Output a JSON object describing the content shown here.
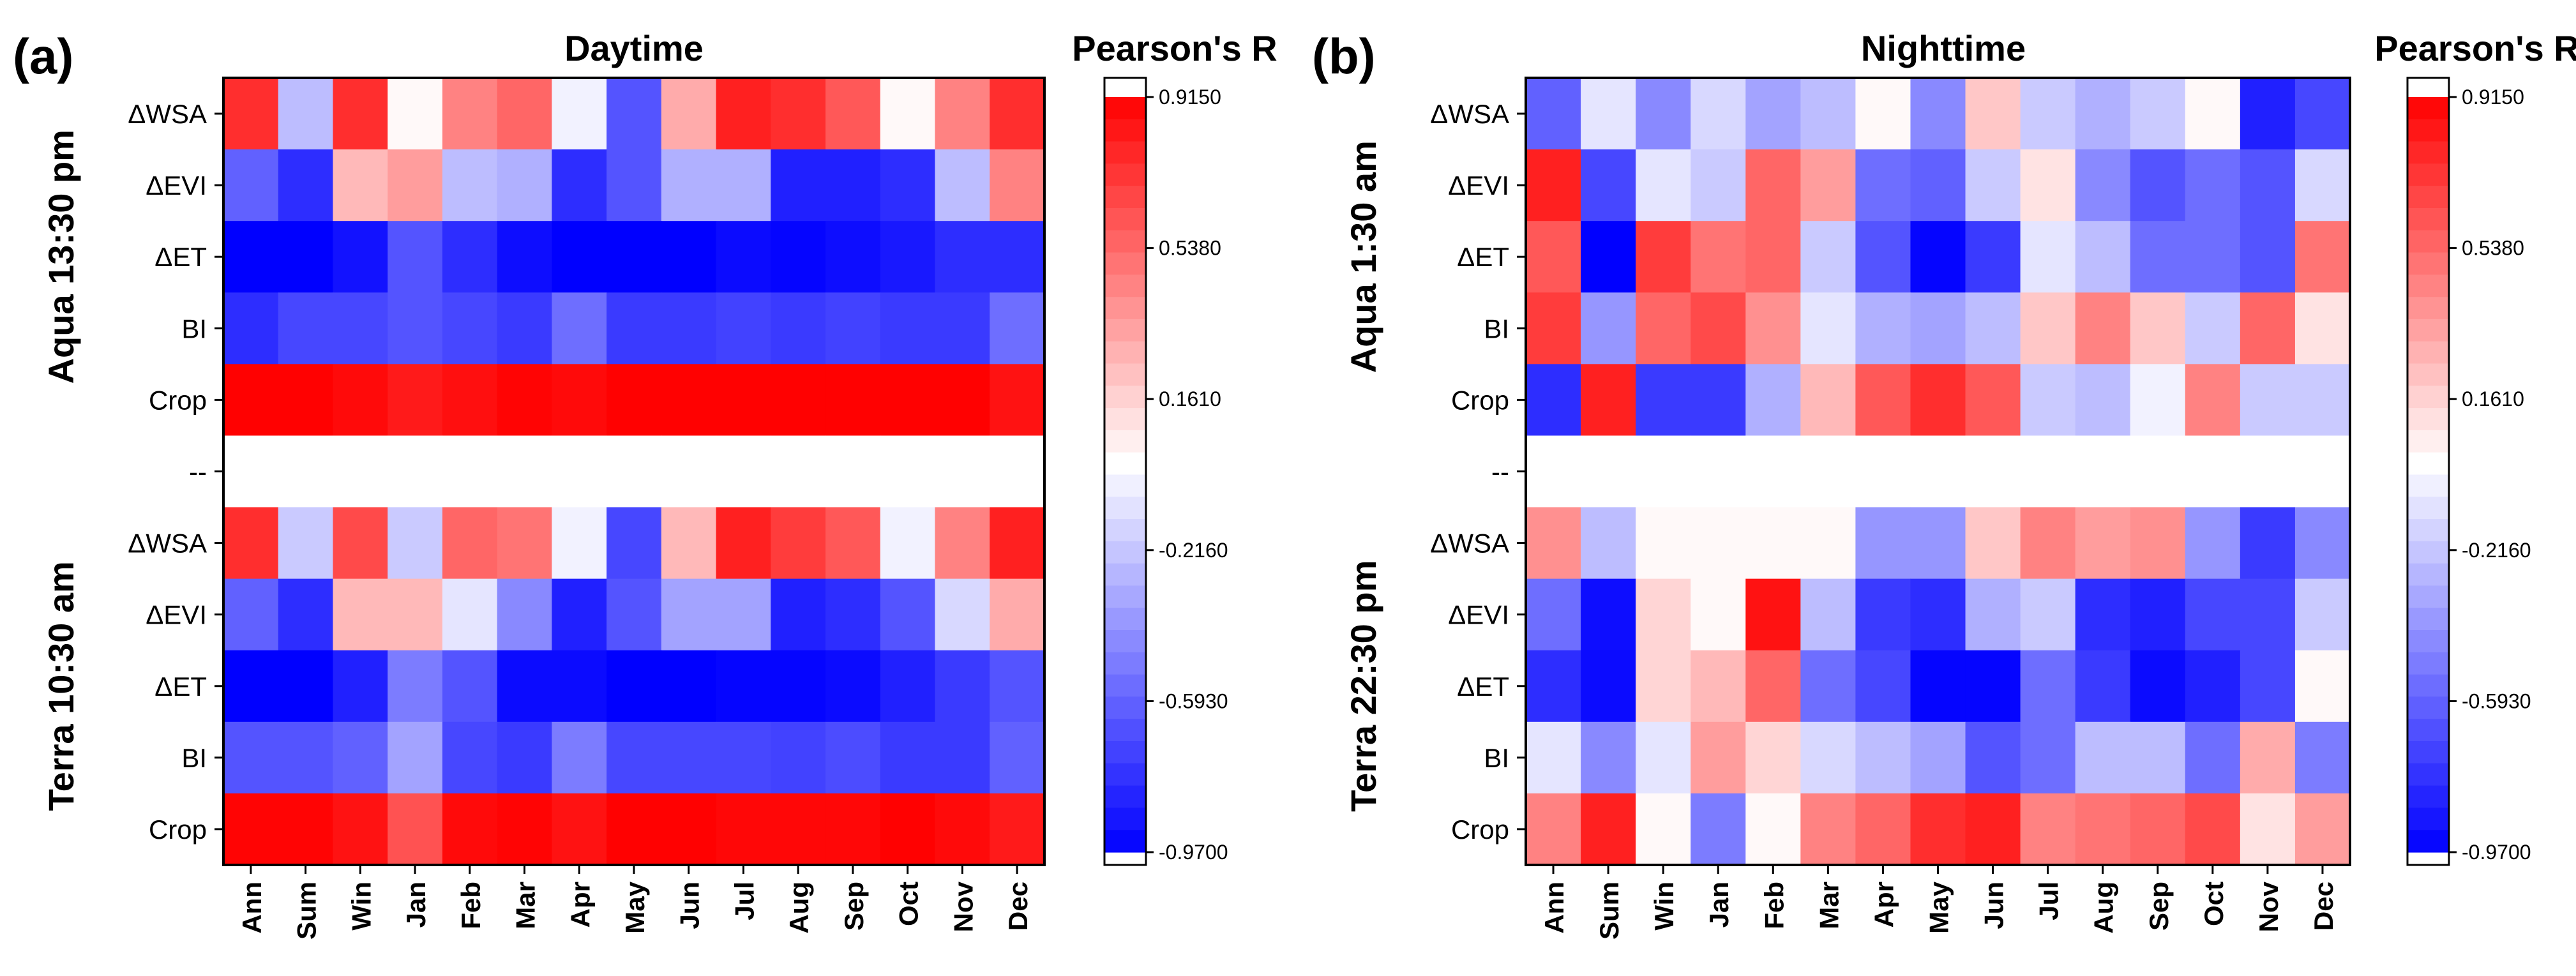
{
  "figure": {
    "colorbar_title": "Pearson's R",
    "colorbar_ticks": [
      {
        "value": 0.915,
        "label": "0.9150"
      },
      {
        "value": 0.538,
        "label": "0.5380"
      },
      {
        "value": 0.161,
        "label": "0.1610"
      },
      {
        "value": -0.216,
        "label": "-0.2160"
      },
      {
        "value": -0.593,
        "label": "-0.5930"
      },
      {
        "value": -0.97,
        "label": "-0.9700"
      }
    ],
    "colorbar_range": [
      -0.97,
      0.915
    ],
    "colors": {
      "negative": "#0000ff",
      "neutral": "#ffffff",
      "positive": "#ff0000"
    }
  },
  "chart_data": [
    {
      "type": "heatmap",
      "panel_label": "(a)",
      "title": "Daytime",
      "group_labels": [
        "Aqua 13:30  pm",
        "Terra 10:30  am"
      ],
      "x": [
        "Ann",
        "Sum",
        "Win",
        "Jan",
        "Feb",
        "Mar",
        "Apr",
        "May",
        "Jun",
        "Jul",
        "Aug",
        "Sep",
        "Oct",
        "Nov",
        "Dec"
      ],
      "y": [
        "ΔWSA",
        "ΔEVI",
        "ΔET",
        "BI",
        "Crop",
        "--",
        "ΔWSA",
        "ΔEVI",
        "ΔET",
        "BI",
        "Crop"
      ],
      "z": [
        [
          0.75,
          -0.25,
          0.75,
          0.02,
          0.45,
          0.55,
          -0.05,
          -0.65,
          0.3,
          0.8,
          0.75,
          0.6,
          0.02,
          0.45,
          0.75
        ],
        [
          -0.6,
          -0.8,
          0.25,
          0.35,
          -0.25,
          -0.3,
          -0.8,
          -0.65,
          -0.3,
          -0.3,
          -0.85,
          -0.85,
          -0.8,
          -0.25,
          0.45
        ],
        [
          -0.97,
          -0.97,
          -0.9,
          -0.65,
          -0.8,
          -0.92,
          -0.97,
          -0.97,
          -0.97,
          -0.93,
          -0.95,
          -0.92,
          -0.88,
          -0.8,
          -0.8
        ],
        [
          -0.8,
          -0.7,
          -0.7,
          -0.65,
          -0.7,
          -0.75,
          -0.55,
          -0.75,
          -0.75,
          -0.72,
          -0.75,
          -0.72,
          -0.75,
          -0.75,
          -0.55
        ],
        [
          0.91,
          0.91,
          0.88,
          0.82,
          0.86,
          0.9,
          0.88,
          0.91,
          0.91,
          0.91,
          0.91,
          0.91,
          0.91,
          0.91,
          0.85
        ],
        [
          null,
          null,
          null,
          null,
          null,
          null,
          null,
          null,
          null,
          null,
          null,
          null,
          null,
          null,
          null
        ],
        [
          0.75,
          -0.2,
          0.65,
          -0.2,
          0.55,
          0.5,
          -0.05,
          -0.7,
          0.25,
          0.8,
          0.7,
          0.6,
          -0.05,
          0.45,
          0.8
        ],
        [
          -0.6,
          -0.8,
          0.25,
          0.25,
          -0.1,
          -0.45,
          -0.85,
          -0.65,
          -0.35,
          -0.35,
          -0.85,
          -0.8,
          -0.65,
          -0.15,
          0.3
        ],
        [
          -0.97,
          -0.97,
          -0.85,
          -0.5,
          -0.65,
          -0.93,
          -0.93,
          -0.97,
          -0.97,
          -0.95,
          -0.95,
          -0.93,
          -0.85,
          -0.75,
          -0.65
        ],
        [
          -0.65,
          -0.65,
          -0.6,
          -0.35,
          -0.7,
          -0.75,
          -0.5,
          -0.7,
          -0.7,
          -0.7,
          -0.72,
          -0.68,
          -0.75,
          -0.75,
          -0.6
        ],
        [
          0.9,
          0.9,
          0.85,
          0.62,
          0.88,
          0.9,
          0.85,
          0.91,
          0.91,
          0.89,
          0.89,
          0.89,
          0.91,
          0.88,
          0.82
        ]
      ]
    },
    {
      "type": "heatmap",
      "panel_label": "(b)",
      "title": "Nighttime",
      "group_labels": [
        "Aqua 1:30  am",
        "Terra 22:30  pm"
      ],
      "x": [
        "Ann",
        "Sum",
        "Win",
        "Jan",
        "Feb",
        "Mar",
        "Apr",
        "May",
        "Jun",
        "Jul",
        "Aug",
        "Sep",
        "Oct",
        "Nov",
        "Dec"
      ],
      "y": [
        "ΔWSA",
        "ΔEVI",
        "ΔET",
        "BI",
        "Crop",
        "--",
        "ΔWSA",
        "ΔEVI",
        "ΔET",
        "BI",
        "Crop"
      ],
      "z": [
        [
          -0.6,
          -0.1,
          -0.45,
          -0.15,
          -0.35,
          -0.25,
          0.02,
          -0.45,
          0.2,
          -0.2,
          -0.3,
          -0.2,
          0.02,
          -0.85,
          -0.7
        ],
        [
          0.8,
          -0.7,
          -0.1,
          -0.2,
          0.55,
          0.35,
          -0.55,
          -0.6,
          -0.2,
          0.1,
          -0.45,
          -0.65,
          -0.55,
          -0.65,
          -0.15
        ],
        [
          0.6,
          -0.97,
          0.7,
          0.5,
          0.55,
          -0.2,
          -0.65,
          -0.95,
          -0.75,
          -0.1,
          -0.25,
          -0.55,
          -0.55,
          -0.65,
          0.5
        ],
        [
          0.7,
          -0.4,
          0.55,
          0.65,
          0.4,
          -0.1,
          -0.3,
          -0.35,
          -0.25,
          0.2,
          0.45,
          0.2,
          -0.2,
          0.55,
          0.1
        ],
        [
          -0.8,
          0.8,
          -0.75,
          -0.75,
          -0.3,
          0.25,
          0.6,
          0.75,
          0.6,
          -0.2,
          -0.25,
          -0.05,
          0.45,
          -0.2,
          -0.2
        ],
        [
          null,
          null,
          null,
          null,
          null,
          null,
          null,
          null,
          null,
          null,
          null,
          null,
          null,
          null,
          null
        ],
        [
          0.4,
          -0.25,
          0.02,
          0.02,
          0.02,
          0.02,
          -0.4,
          -0.4,
          0.2,
          0.45,
          0.35,
          0.4,
          -0.4,
          -0.75,
          -0.45
        ],
        [
          -0.55,
          -0.92,
          0.15,
          0.02,
          0.85,
          -0.25,
          -0.75,
          -0.8,
          -0.3,
          -0.2,
          -0.8,
          -0.85,
          -0.7,
          -0.7,
          -0.2
        ],
        [
          -0.8,
          -0.93,
          0.15,
          0.25,
          0.55,
          -0.55,
          -0.7,
          -0.95,
          -0.95,
          -0.55,
          -0.75,
          -0.93,
          -0.85,
          -0.7,
          0.02
        ],
        [
          -0.1,
          -0.45,
          -0.1,
          0.35,
          0.15,
          -0.15,
          -0.25,
          -0.35,
          -0.65,
          -0.55,
          -0.25,
          -0.25,
          -0.55,
          0.3,
          -0.5
        ],
        [
          0.45,
          0.8,
          0.02,
          -0.5,
          0.02,
          0.45,
          0.55,
          0.75,
          0.8,
          0.45,
          0.5,
          0.55,
          0.65,
          0.1,
          0.35
        ]
      ]
    }
  ]
}
